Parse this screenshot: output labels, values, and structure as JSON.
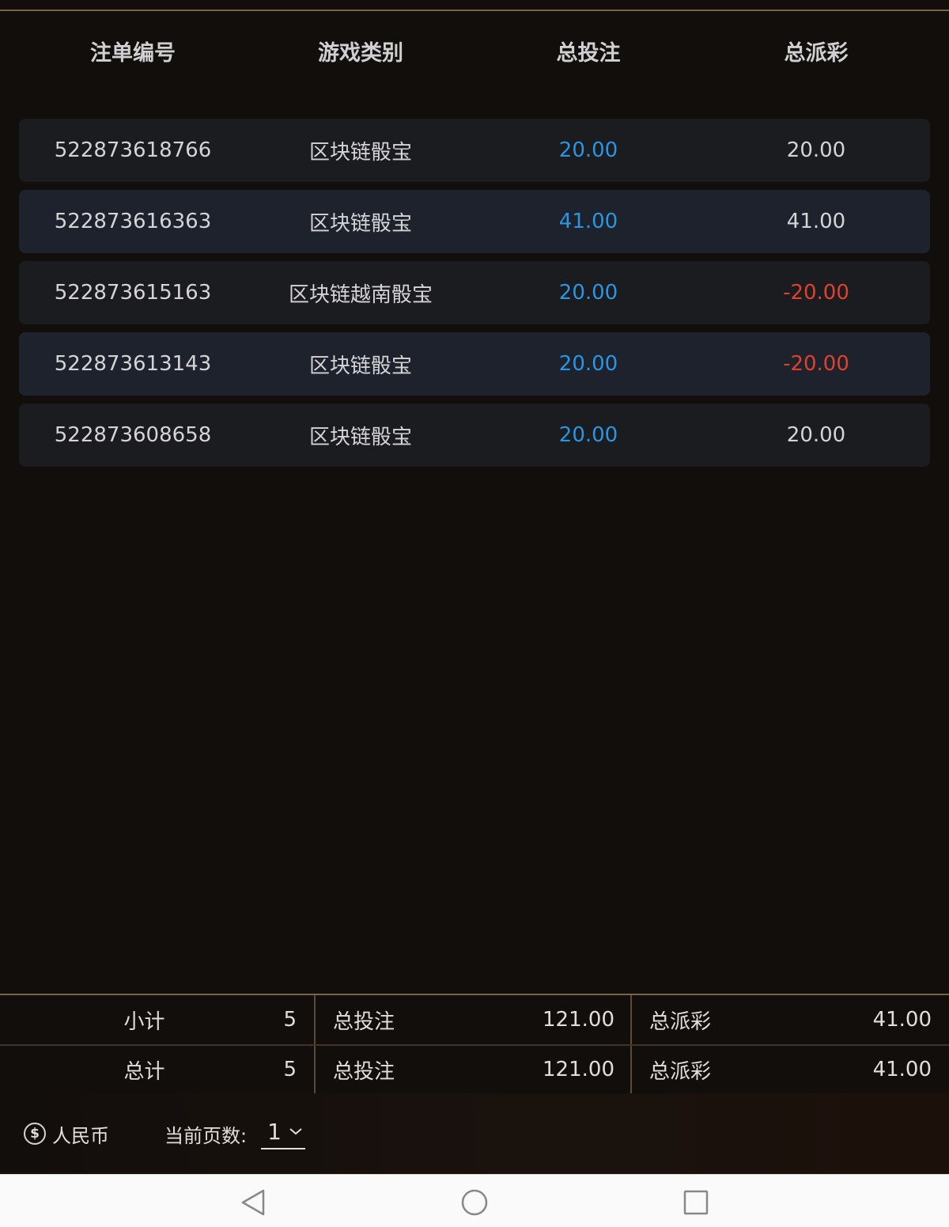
{
  "table": {
    "headers": [
      "注单编号",
      "游戏类别",
      "总投注",
      "总派彩"
    ],
    "rows": [
      {
        "id": "522873618766",
        "game": "区块链骰宝",
        "bet": "20.00",
        "payout": "20.00",
        "negative": false
      },
      {
        "id": "522873616363",
        "game": "区块链骰宝",
        "bet": "41.00",
        "payout": "41.00",
        "negative": false
      },
      {
        "id": "522873615163",
        "game": "区块链越南骰宝",
        "bet": "20.00",
        "payout": "-20.00",
        "negative": true
      },
      {
        "id": "522873613143",
        "game": "区块链骰宝",
        "bet": "20.00",
        "payout": "-20.00",
        "negative": true
      },
      {
        "id": "522873608658",
        "game": "区块链骰宝",
        "bet": "20.00",
        "payout": "20.00",
        "negative": false
      }
    ]
  },
  "summary": [
    {
      "label": "小计",
      "count": "5",
      "bet_label": "总投注",
      "bet": "121.00",
      "payout_label": "总派彩",
      "payout": "41.00"
    },
    {
      "label": "总计",
      "count": "5",
      "bet_label": "总投注",
      "bet": "121.00",
      "payout_label": "总派彩",
      "payout": "41.00"
    }
  ],
  "footer": {
    "currency_icon": "$",
    "currency": "人民币",
    "page_label": "当前页数:",
    "page": "1"
  },
  "colors": {
    "bet": "#2a95e2",
    "negative": "#e0412f",
    "accent_line": "#7a6448"
  },
  "navbar": {
    "icons": [
      "back-icon",
      "home-icon",
      "recents-icon"
    ]
  }
}
